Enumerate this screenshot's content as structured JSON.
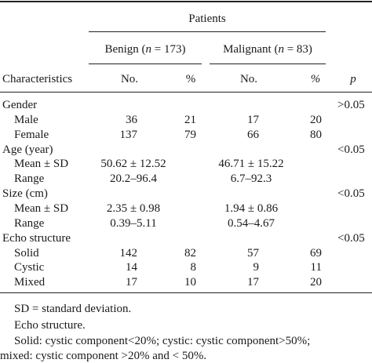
{
  "header": {
    "group": "Patients",
    "benign": "Benign (n = 173)",
    "malignant": "Malignant (n = 83)",
    "characteristics": "Characteristics",
    "no": "No.",
    "pct": "%",
    "p": "p"
  },
  "rows": [
    {
      "label": "Gender",
      "indent": false,
      "b_no": "",
      "b_pct": "",
      "m_no": "",
      "m_pct": "",
      "p": ">0.05"
    },
    {
      "label": "Male",
      "indent": true,
      "b_no": "36",
      "b_pct": "21",
      "m_no": "17",
      "m_pct": "20",
      "p": ""
    },
    {
      "label": "Female",
      "indent": true,
      "b_no": "137",
      "b_pct": "79",
      "m_no": "66",
      "m_pct": "80",
      "p": ""
    },
    {
      "label": "Age (year)",
      "indent": false,
      "b_no": "",
      "b_pct": "",
      "m_no": "",
      "m_pct": "",
      "p": "<0.05"
    },
    {
      "label": "Mean ± SD",
      "indent": true,
      "b_span": "50.62 ± 12.52",
      "m_span": "46.71 ± 15.22",
      "p": ""
    },
    {
      "label": "Range",
      "indent": true,
      "b_span": "20.2–96.4",
      "m_span": "6.7–92.3",
      "p": ""
    },
    {
      "label": "Size (cm)",
      "indent": false,
      "b_no": "",
      "b_pct": "",
      "m_no": "",
      "m_pct": "",
      "p": "<0.05"
    },
    {
      "label": "Mean ± SD",
      "indent": true,
      "b_span": "2.35 ± 0.98",
      "m_span": "1.94 ± 0.86",
      "p": ""
    },
    {
      "label": "Range",
      "indent": true,
      "b_span": "0.39–5.11",
      "m_span": "0.54–4.67",
      "p": ""
    },
    {
      "label": "Echo structure",
      "indent": false,
      "b_no": "",
      "b_pct": "",
      "m_no": "",
      "m_pct": "",
      "p": "<0.05"
    },
    {
      "label": "Solid",
      "indent": true,
      "b_no": "142",
      "b_pct": "82",
      "m_no": "57",
      "m_pct": "69",
      "p": ""
    },
    {
      "label": "Cystic",
      "indent": true,
      "b_no": "14",
      "b_pct": "8",
      "m_no": "9",
      "m_pct": "11",
      "p": ""
    },
    {
      "label": "Mixed",
      "indent": true,
      "b_no": "17",
      "b_pct": "10",
      "m_no": "17",
      "m_pct": "20",
      "p": ""
    }
  ],
  "footnotes": [
    "SD = standard deviation.",
    "Echo structure.",
    "Solid: cystic component<20%; cystic: cystic component>50%;",
    "mixed: cystic component >20% and < 50%."
  ]
}
